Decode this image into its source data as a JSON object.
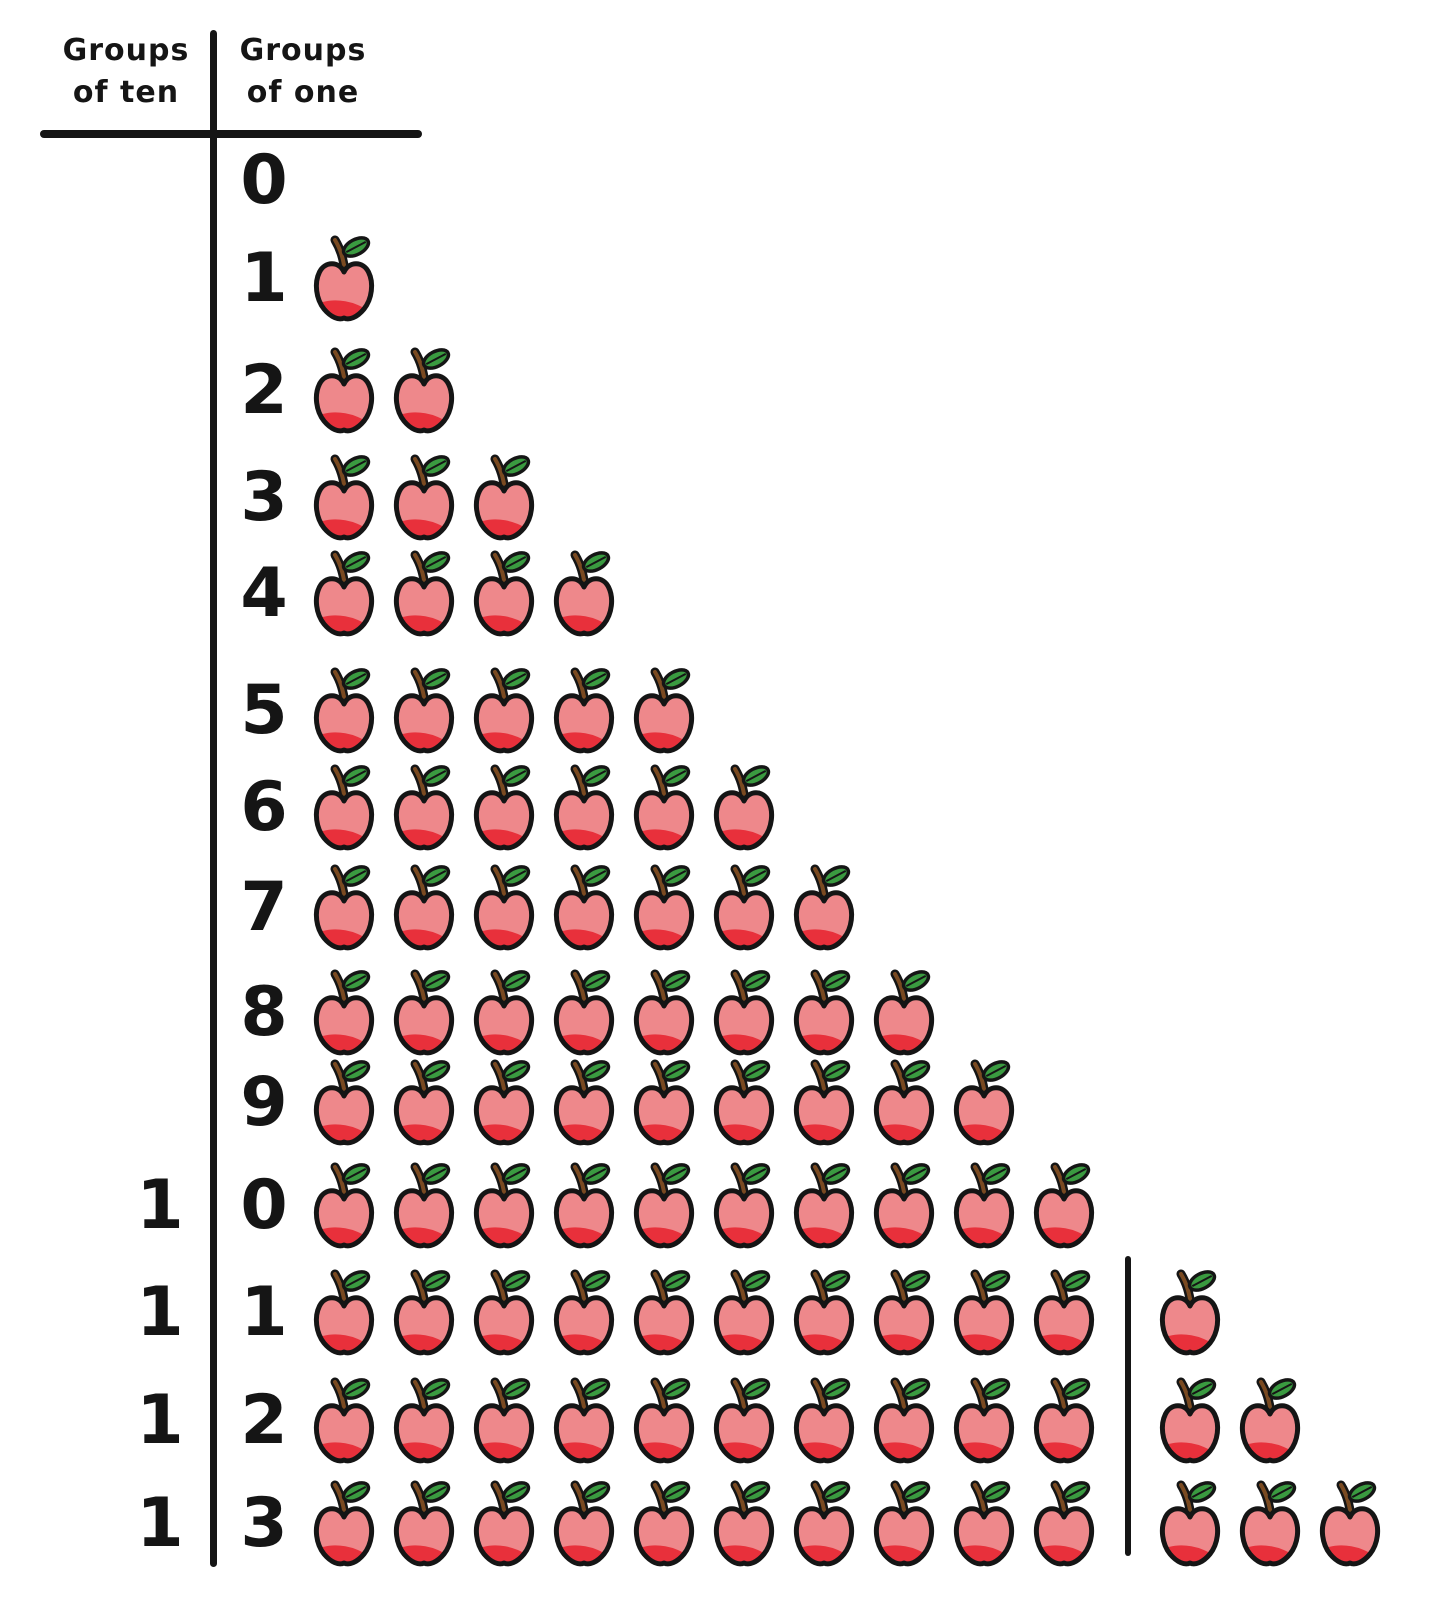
{
  "header": {
    "col1": {
      "line1": "Groups",
      "line2": "of ten"
    },
    "col2": {
      "line1": "Groups",
      "line2": "of one"
    }
  },
  "colors": {
    "background": "#ffffff",
    "ink": "#151515",
    "apple_body": "#ee888b",
    "apple_shade": "#e8303b",
    "leaf_green": "#3a9a40",
    "stem_brown": "#7a4a21"
  },
  "rows": [
    {
      "tens": "",
      "ones": "0",
      "apples_before_line": 0,
      "apples_after_line": 0
    },
    {
      "tens": "",
      "ones": "1",
      "apples_before_line": 1,
      "apples_after_line": 0
    },
    {
      "tens": "",
      "ones": "2",
      "apples_before_line": 2,
      "apples_after_line": 0
    },
    {
      "tens": "",
      "ones": "3",
      "apples_before_line": 3,
      "apples_after_line": 0
    },
    {
      "tens": "",
      "ones": "4",
      "apples_before_line": 4,
      "apples_after_line": 0
    },
    {
      "tens": "",
      "ones": "5",
      "apples_before_line": 5,
      "apples_after_line": 0
    },
    {
      "tens": "",
      "ones": "6",
      "apples_before_line": 6,
      "apples_after_line": 0
    },
    {
      "tens": "",
      "ones": "7",
      "apples_before_line": 7,
      "apples_after_line": 0
    },
    {
      "tens": "",
      "ones": "8",
      "apples_before_line": 8,
      "apples_after_line": 0
    },
    {
      "tens": "",
      "ones": "9",
      "apples_before_line": 9,
      "apples_after_line": 0
    },
    {
      "tens": "1",
      "ones": "0",
      "apples_before_line": 10,
      "apples_after_line": 0
    },
    {
      "tens": "1",
      "ones": "1",
      "apples_before_line": 10,
      "apples_after_line": 1
    },
    {
      "tens": "1",
      "ones": "2",
      "apples_before_line": 10,
      "apples_after_line": 2
    },
    {
      "tens": "1",
      "ones": "3",
      "apples_before_line": 10,
      "apples_after_line": 3
    }
  ],
  "chart_data": {
    "type": "table",
    "columns": [
      "Groups of ten",
      "Groups of one"
    ],
    "values": [
      [
        null,
        0
      ],
      [
        null,
        1
      ],
      [
        null,
        2
      ],
      [
        null,
        3
      ],
      [
        null,
        4
      ],
      [
        null,
        5
      ],
      [
        null,
        6
      ],
      [
        null,
        7
      ],
      [
        null,
        8
      ],
      [
        null,
        9
      ],
      [
        1,
        0
      ],
      [
        1,
        1
      ],
      [
        1,
        2
      ],
      [
        1,
        3
      ]
    ],
    "pictogram_icon": "apple",
    "apple_counts_per_row": [
      0,
      1,
      2,
      3,
      4,
      5,
      6,
      7,
      8,
      9,
      10,
      11,
      12,
      13
    ],
    "notes": "Rows with 11-13 apples show a group of ten, a vertical divider line, then 1-3 extra apples"
  }
}
